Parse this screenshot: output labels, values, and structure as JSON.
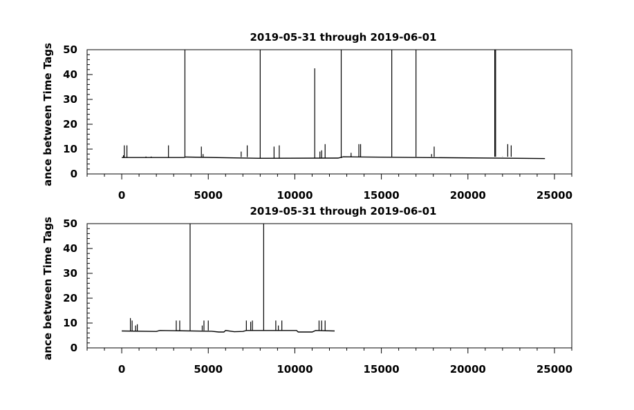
{
  "chart_data": [
    {
      "type": "line",
      "title": "2019-05-31 through 2019-06-01",
      "ylabel": "ance between Time Tags",
      "xlabel": "",
      "xlim": [
        -2000,
        26000
      ],
      "ylim": [
        0,
        50
      ],
      "xticks": [
        0,
        5000,
        10000,
        15000,
        20000,
        25000
      ],
      "xtick_labels": [
        "0",
        "5000",
        "10000",
        "15000",
        "20000",
        "25000"
      ],
      "yticks": [
        0,
        10,
        20,
        30,
        40,
        50
      ],
      "ytick_labels": [
        "0",
        "10",
        "20",
        "30",
        "40",
        "50"
      ],
      "grid": false,
      "series": [
        {
          "baseline": [
            [
              0,
              6.6
            ],
            [
              3600,
              6.6
            ],
            [
              3700,
              6.8
            ],
            [
              7900,
              6.3
            ],
            [
              12500,
              6.4
            ],
            [
              12800,
              6.9
            ],
            [
              24450,
              6.2
            ]
          ],
          "spikes": [
            [
              100,
              7.5
            ],
            [
              150,
              11.5
            ],
            [
              300,
              11.5
            ],
            [
              1400,
              7.0
            ],
            [
              1700,
              7.0
            ],
            [
              2700,
              11.5
            ],
            [
              3650,
              50
            ],
            [
              4600,
              11.0
            ],
            [
              4700,
              8.0
            ],
            [
              6900,
              9.0
            ],
            [
              7250,
              11.5
            ],
            [
              8000,
              50
            ],
            [
              8800,
              11.0
            ],
            [
              9100,
              11.5
            ],
            [
              11150,
              42.5
            ],
            [
              11450,
              9.0
            ],
            [
              11550,
              9.5
            ],
            [
              11750,
              12.0
            ],
            [
              12680,
              50
            ],
            [
              13250,
              8.5
            ],
            [
              13700,
              12.0
            ],
            [
              13800,
              12.0
            ],
            [
              15600,
              50
            ],
            [
              17000,
              50
            ],
            [
              17900,
              8.0
            ],
            [
              18050,
              11.0
            ],
            [
              21550,
              50
            ],
            [
              21600,
              50
            ],
            [
              22000,
              7.0
            ],
            [
              22300,
              12.0
            ],
            [
              22500,
              11.5
            ]
          ]
        }
      ]
    },
    {
      "type": "line",
      "title": "2019-05-31 through 2019-06-01",
      "ylabel": "ance between Time Tags",
      "xlabel": "",
      "xlim": [
        -2000,
        26000
      ],
      "ylim": [
        0,
        50
      ],
      "xticks": [
        0,
        5000,
        10000,
        15000,
        20000,
        25000
      ],
      "xtick_labels": [
        "0",
        "5000",
        "10000",
        "15000",
        "20000",
        "25000"
      ],
      "yticks": [
        0,
        10,
        20,
        30,
        40,
        50
      ],
      "ytick_labels": [
        "0",
        "10",
        "20",
        "30",
        "40",
        "50"
      ],
      "grid": false,
      "series": [
        {
          "baseline": [
            [
              0,
              6.8
            ],
            [
              2000,
              6.6
            ],
            [
              2200,
              7.0
            ],
            [
              5200,
              6.7
            ],
            [
              5600,
              6.4
            ],
            [
              5900,
              6.4
            ],
            [
              6000,
              7.0
            ],
            [
              6500,
              6.5
            ],
            [
              7000,
              6.6
            ],
            [
              7200,
              7.0
            ],
            [
              10100,
              7.0
            ],
            [
              10200,
              6.4
            ],
            [
              11000,
              6.4
            ],
            [
              11200,
              7.0
            ],
            [
              12300,
              6.8
            ]
          ],
          "spikes": [
            [
              500,
              12.0
            ],
            [
              600,
              11.0
            ],
            [
              800,
              9.0
            ],
            [
              900,
              9.5
            ],
            [
              3150,
              11.0
            ],
            [
              3350,
              11.0
            ],
            [
              3950,
              50
            ],
            [
              4650,
              9.0
            ],
            [
              4750,
              11.0
            ],
            [
              5000,
              11.0
            ],
            [
              7200,
              11.0
            ],
            [
              7450,
              10.5
            ],
            [
              7550,
              11.0
            ],
            [
              8200,
              50
            ],
            [
              8900,
              11.0
            ],
            [
              9050,
              9.0
            ],
            [
              9250,
              11.0
            ],
            [
              11400,
              11.0
            ],
            [
              11550,
              11.0
            ],
            [
              11750,
              11.0
            ]
          ]
        }
      ]
    }
  ]
}
